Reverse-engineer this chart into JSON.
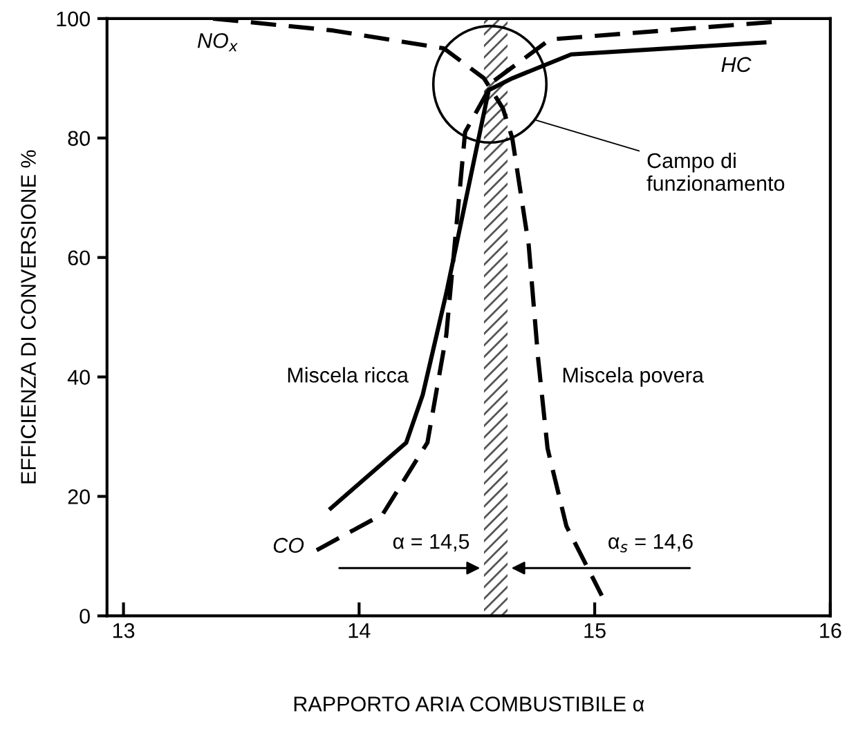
{
  "chart_data": {
    "type": "line",
    "xlabel": "RAPPORTO ARIA COMBUSTIBILE α",
    "ylabel": "EFFICIENZA DI CONVERSIONE %",
    "xlim": [
      12.93,
      16
    ],
    "xticks": [
      13,
      14,
      15,
      16
    ],
    "ylim": [
      0,
      100
    ],
    "yticks": [
      0,
      20,
      40,
      60,
      80,
      100
    ],
    "grid": false,
    "legend": false,
    "series": [
      {
        "name": "NO$_{x}$",
        "color": "#000000",
        "line_style": "dashed",
        "x": [
          13.38,
          13.89,
          14.36,
          14.53,
          14.61,
          14.65,
          14.72,
          14.76,
          14.8,
          14.88,
          15.03
        ],
        "values": [
          100,
          98,
          95,
          90,
          85,
          80,
          62,
          43,
          28,
          15,
          3.4
        ]
      },
      {
        "name": "CO",
        "color": "#000000",
        "line_style": "dashed",
        "x": [
          13.82,
          14.1,
          14.29,
          14.37,
          14.45,
          14.57,
          14.81,
          15.78
        ],
        "values": [
          11,
          17,
          29,
          47,
          81,
          89.5,
          96.5,
          99.5
        ]
      },
      {
        "name": "HC",
        "color": "#000000",
        "line_style": "solid",
        "x": [
          13.88,
          14.2,
          14.27,
          14.37,
          14.55,
          14.65,
          14.9,
          15.72
        ],
        "values": [
          18,
          29,
          37,
          54,
          88,
          90,
          94,
          96
        ]
      }
    ],
    "bands": [
      {
        "axis": "x",
        "from": 14.53,
        "to": 14.63,
        "color": "#555555"
      }
    ],
    "annotations": [
      {
        "text": "α = 14,5",
        "x": 14.53,
        "y": 8
      },
      {
        "text": "α$_{s}$ = 14,6",
        "x": 14.63,
        "y": 8
      },
      "Campo di\nfunzionamento",
      "Miscela ricca",
      "Miscela povera"
    ]
  }
}
